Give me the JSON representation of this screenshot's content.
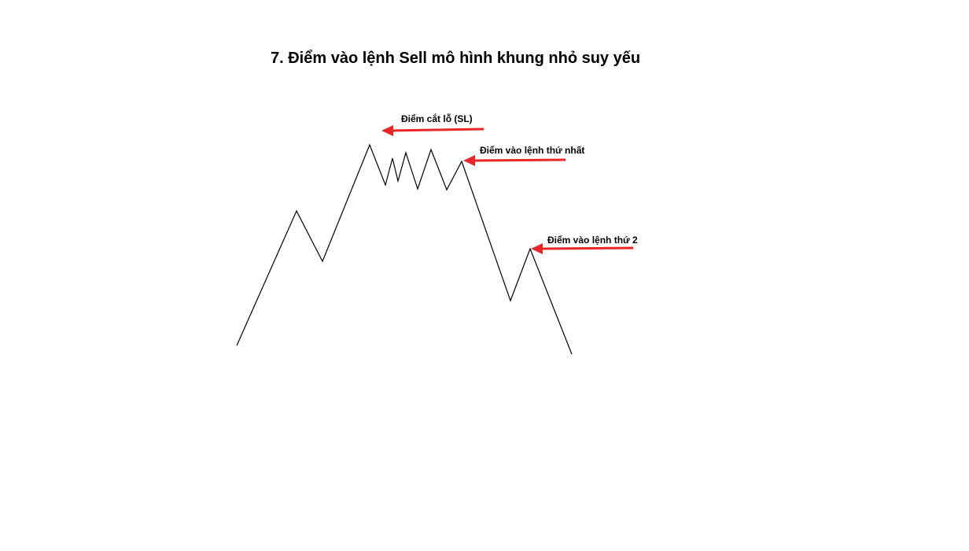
{
  "title": "7. Điểm vào lệnh Sell mô hình khung nhỏ suy yếu",
  "annotations": {
    "stop_loss": "Điểm cắt lỗ (SL)",
    "entry_1": "Điểm vào lệnh thứ nhất",
    "entry_2": "Điểm vào lệnh thứ 2"
  },
  "colors": {
    "price_line": "#000000",
    "arrow": "#e8262a",
    "background": "#ffffff"
  }
}
